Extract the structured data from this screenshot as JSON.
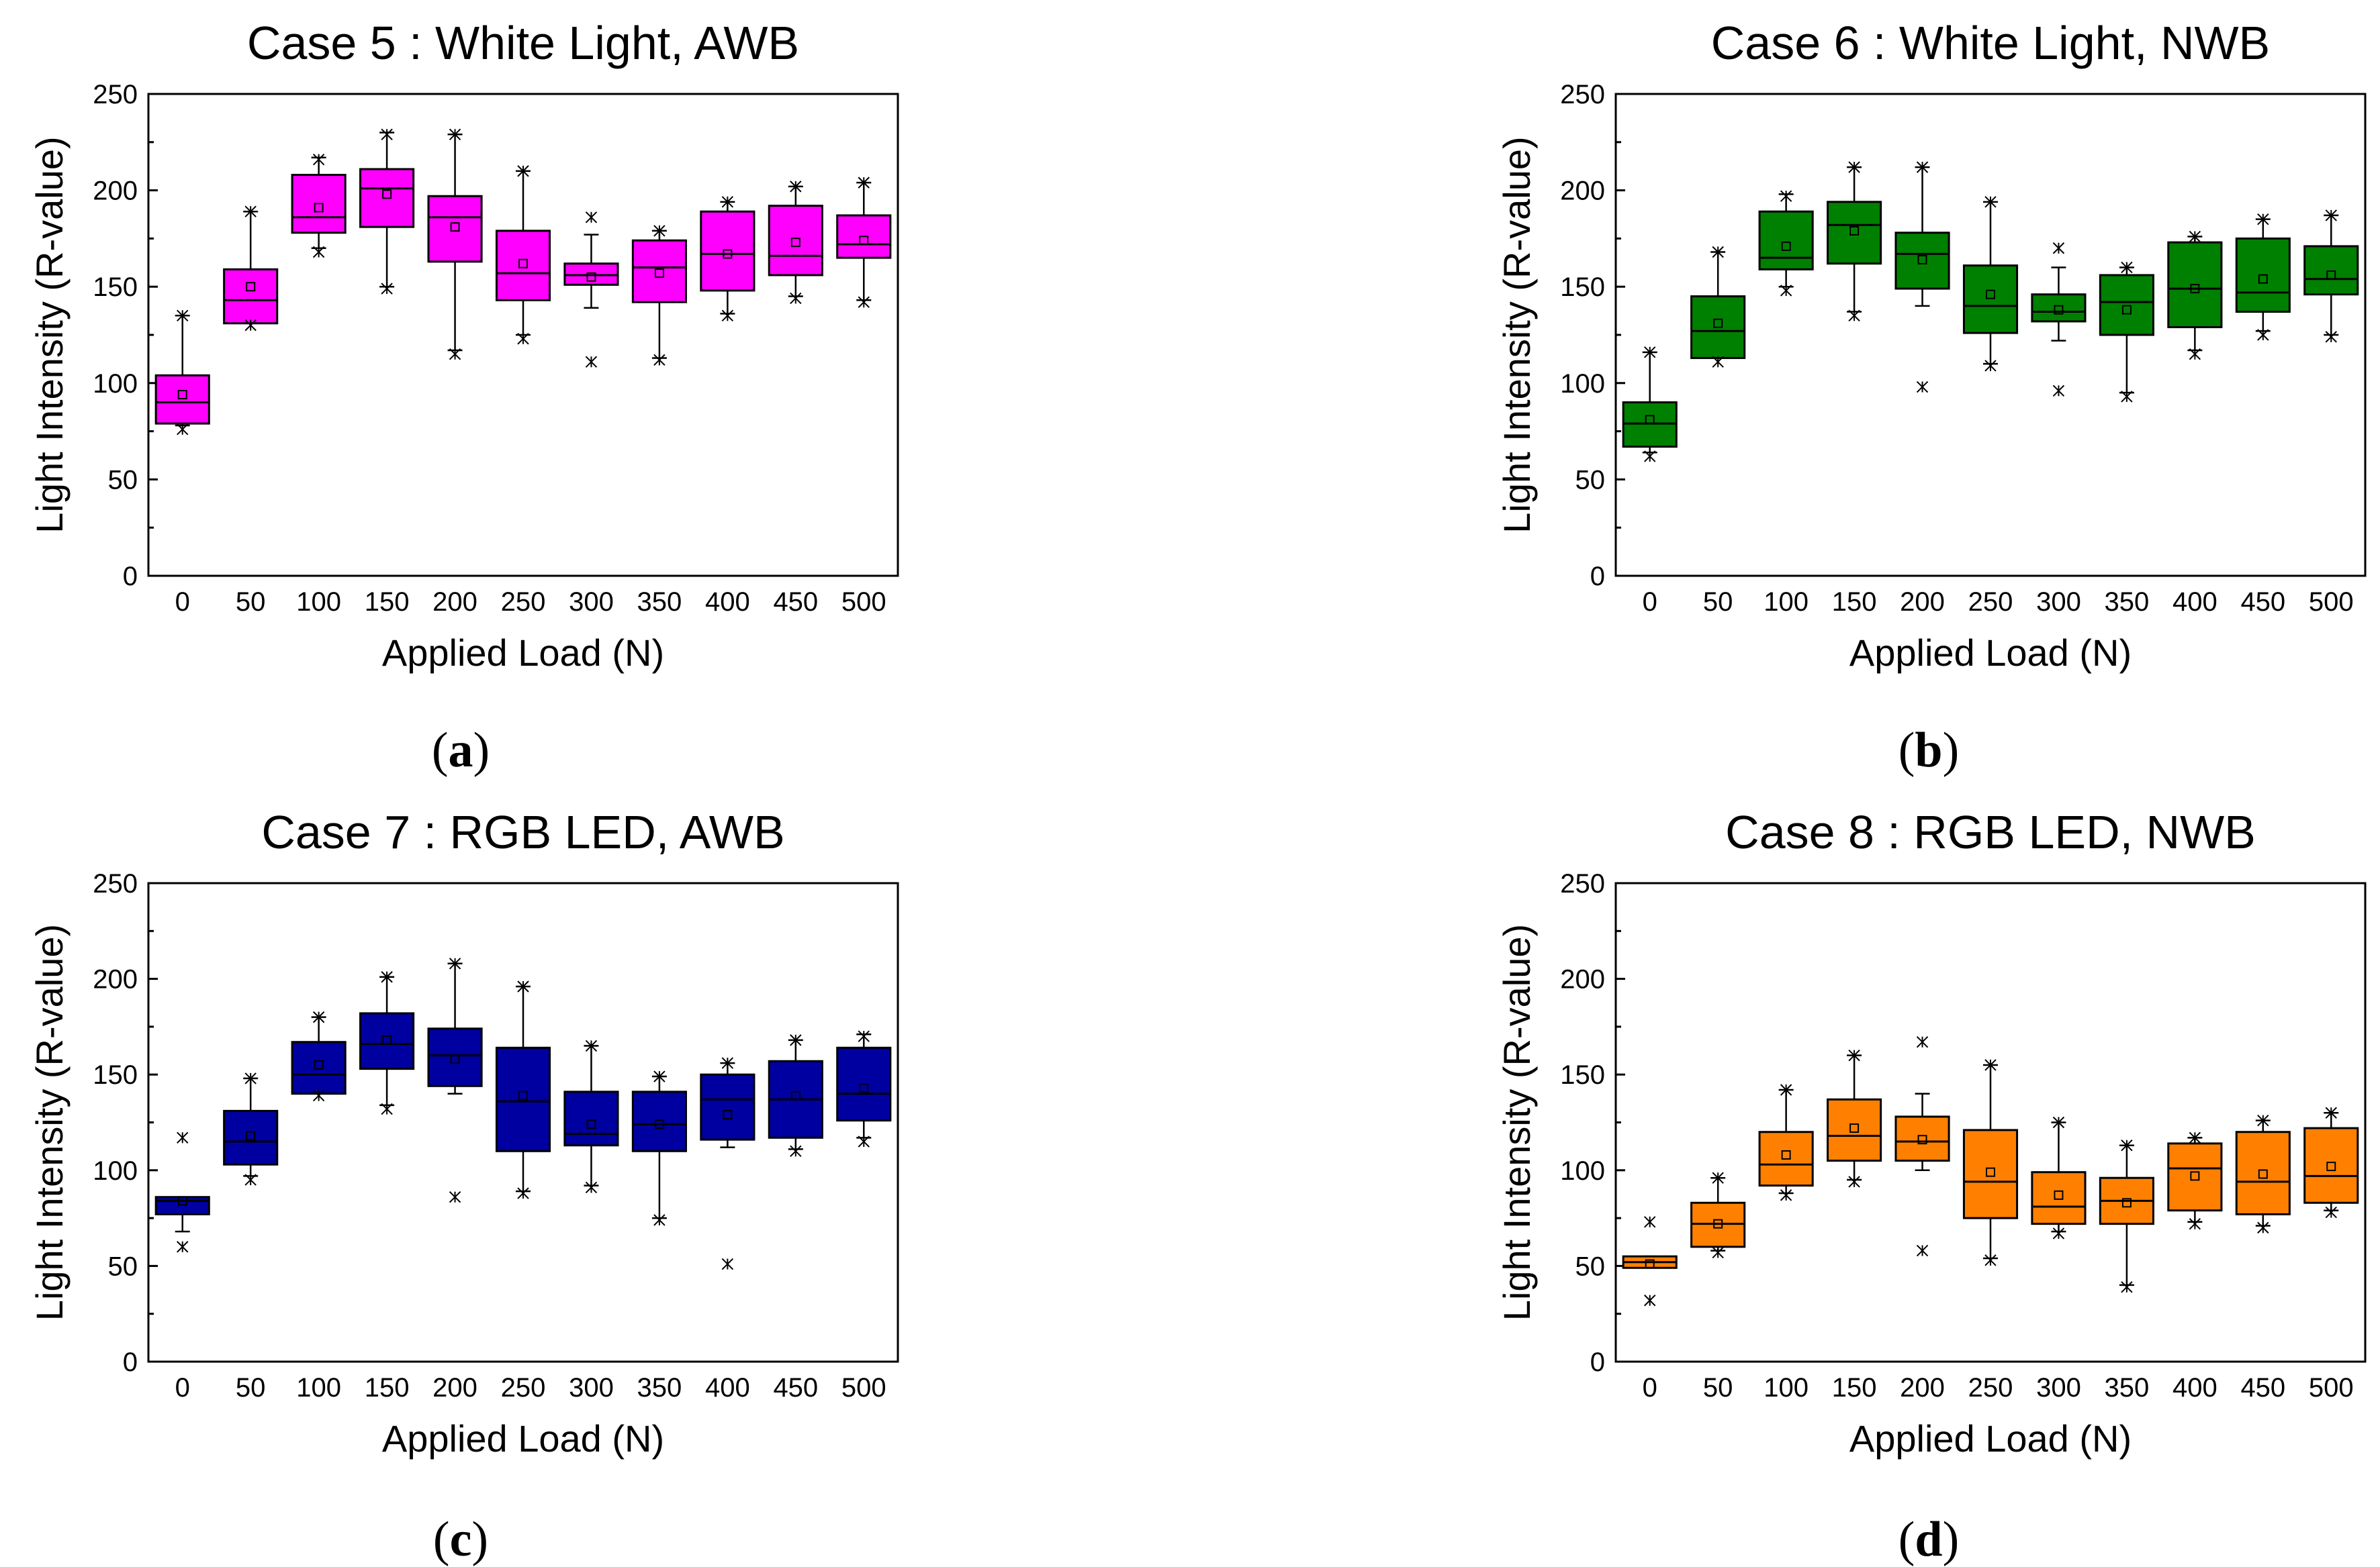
{
  "chart_data": [
    {
      "type": "box",
      "panel": "a",
      "title": "Case 5 : White Light, AWB",
      "xlabel": "Applied Load (N)",
      "ylabel": "Light Intensity (R-value)",
      "ylim": [
        0,
        250
      ],
      "yticks": [
        0,
        50,
        100,
        150,
        200,
        250
      ],
      "categories": [
        "0",
        "50",
        "100",
        "150",
        "200",
        "250",
        "300",
        "350",
        "400",
        "450",
        "500"
      ],
      "color": "#ff00ff",
      "boxes": [
        {
          "q1": 79,
          "median": 90,
          "q3": 104,
          "wlo": 78,
          "whi": 135,
          "mean": 94,
          "outliers": [
            76,
            135
          ]
        },
        {
          "q1": 131,
          "median": 143,
          "q3": 159,
          "wlo": 131,
          "whi": 189,
          "mean": 150,
          "outliers": [
            130,
            189
          ]
        },
        {
          "q1": 178,
          "median": 186,
          "q3": 208,
          "wlo": 170,
          "whi": 217,
          "mean": 191,
          "outliers": [
            168,
            216
          ]
        },
        {
          "q1": 181,
          "median": 201,
          "q3": 211,
          "wlo": 150,
          "whi": 230,
          "mean": 198,
          "outliers": [
            149,
            229
          ]
        },
        {
          "q1": 163,
          "median": 186,
          "q3": 197,
          "wlo": 117,
          "whi": 229,
          "mean": 181,
          "outliers": [
            115,
            229
          ]
        },
        {
          "q1": 143,
          "median": 157,
          "q3": 179,
          "wlo": 125,
          "whi": 210,
          "mean": 162,
          "outliers": [
            123,
            210
          ]
        },
        {
          "q1": 151,
          "median": 156,
          "q3": 162,
          "wlo": 139,
          "whi": 177,
          "mean": 155,
          "outliers": [
            111,
            186
          ]
        },
        {
          "q1": 142,
          "median": 160,
          "q3": 174,
          "wlo": 113,
          "whi": 179,
          "mean": 157,
          "outliers": [
            112,
            179
          ]
        },
        {
          "q1": 148,
          "median": 167,
          "q3": 189,
          "wlo": 136,
          "whi": 194,
          "mean": 167,
          "outliers": [
            135,
            194
          ]
        },
        {
          "q1": 156,
          "median": 166,
          "q3": 192,
          "wlo": 145,
          "whi": 202,
          "mean": 173,
          "outliers": [
            144,
            202
          ]
        },
        {
          "q1": 165,
          "median": 172,
          "q3": 187,
          "wlo": 143,
          "whi": 204,
          "mean": 174,
          "outliers": [
            142,
            204
          ]
        }
      ]
    },
    {
      "type": "box",
      "panel": "b",
      "title": "Case 6 : White Light, NWB",
      "xlabel": "Applied Load (N)",
      "ylabel": "Light Intensity (R-value)",
      "ylim": [
        0,
        250
      ],
      "yticks": [
        0,
        50,
        100,
        150,
        200,
        250
      ],
      "categories": [
        "0",
        "50",
        "100",
        "150",
        "200",
        "250",
        "300",
        "350",
        "400",
        "450",
        "500"
      ],
      "color": "#008000",
      "boxes": [
        {
          "q1": 67,
          "median": 79,
          "q3": 90,
          "wlo": 64,
          "whi": 116,
          "mean": 81,
          "outliers": [
            62,
            116
          ]
        },
        {
          "q1": 113,
          "median": 127,
          "q3": 145,
          "wlo": 113,
          "whi": 168,
          "mean": 131,
          "outliers": [
            111,
            168
          ]
        },
        {
          "q1": 159,
          "median": 165,
          "q3": 189,
          "wlo": 150,
          "whi": 198,
          "mean": 171,
          "outliers": [
            148,
            197
          ]
        },
        {
          "q1": 162,
          "median": 182,
          "q3": 194,
          "wlo": 137,
          "whi": 212,
          "mean": 179,
          "outliers": [
            135,
            212
          ]
        },
        {
          "q1": 149,
          "median": 167,
          "q3": 178,
          "wlo": 140,
          "whi": 212,
          "mean": 164,
          "outliers": [
            98,
            212
          ]
        },
        {
          "q1": 126,
          "median": 140,
          "q3": 161,
          "wlo": 110,
          "whi": 194,
          "mean": 146,
          "outliers": [
            109,
            194
          ]
        },
        {
          "q1": 132,
          "median": 137,
          "q3": 146,
          "wlo": 122,
          "whi": 160,
          "mean": 138,
          "outliers": [
            96,
            170
          ]
        },
        {
          "q1": 125,
          "median": 142,
          "q3": 156,
          "wlo": 95,
          "whi": 160,
          "mean": 138,
          "outliers": [
            93,
            160
          ]
        },
        {
          "q1": 129,
          "median": 149,
          "q3": 173,
          "wlo": 117,
          "whi": 176,
          "mean": 149,
          "outliers": [
            115,
            176
          ]
        },
        {
          "q1": 137,
          "median": 147,
          "q3": 175,
          "wlo": 127,
          "whi": 185,
          "mean": 154,
          "outliers": [
            125,
            185
          ]
        },
        {
          "q1": 146,
          "median": 154,
          "q3": 171,
          "wlo": 125,
          "whi": 187,
          "mean": 156,
          "outliers": [
            124,
            187
          ]
        }
      ]
    },
    {
      "type": "box",
      "panel": "c",
      "title": "Case 7 : RGB LED, AWB",
      "xlabel": "Applied Load (N)",
      "ylabel": "Light Intensity (R-value)",
      "ylim": [
        0,
        250
      ],
      "yticks": [
        0,
        50,
        100,
        150,
        200,
        250
      ],
      "categories": [
        "0",
        "50",
        "100",
        "150",
        "200",
        "250",
        "300",
        "350",
        "400",
        "450",
        "500"
      ],
      "color": "#0000a0",
      "boxes": [
        {
          "q1": 77,
          "median": 84,
          "q3": 86,
          "wlo": 68,
          "whi": 86,
          "mean": 84,
          "outliers": [
            60,
            117
          ]
        },
        {
          "q1": 103,
          "median": 115,
          "q3": 131,
          "wlo": 97,
          "whi": 148,
          "mean": 118,
          "outliers": [
            95,
            148
          ]
        },
        {
          "q1": 140,
          "median": 150,
          "q3": 167,
          "wlo": 140,
          "whi": 180,
          "mean": 155,
          "outliers": [
            139,
            180
          ]
        },
        {
          "q1": 153,
          "median": 166,
          "q3": 182,
          "wlo": 134,
          "whi": 201,
          "mean": 168,
          "outliers": [
            132,
            201
          ]
        },
        {
          "q1": 144,
          "median": 160,
          "q3": 174,
          "wlo": 140,
          "whi": 208,
          "mean": 158,
          "outliers": [
            86,
            208
          ]
        },
        {
          "q1": 110,
          "median": 136,
          "q3": 164,
          "wlo": 89,
          "whi": 196,
          "mean": 139,
          "outliers": [
            88,
            196
          ]
        },
        {
          "q1": 113,
          "median": 119,
          "q3": 141,
          "wlo": 92,
          "whi": 165,
          "mean": 124,
          "outliers": [
            91,
            165
          ]
        },
        {
          "q1": 110,
          "median": 124,
          "q3": 141,
          "wlo": 75,
          "whi": 149,
          "mean": 124,
          "outliers": [
            74,
            149
          ]
        },
        {
          "q1": 116,
          "median": 137,
          "q3": 150,
          "wlo": 112,
          "whi": 156,
          "mean": 129,
          "outliers": [
            51,
            156
          ]
        },
        {
          "q1": 117,
          "median": 137,
          "q3": 157,
          "wlo": 111,
          "whi": 168,
          "mean": 139,
          "outliers": [
            110,
            168
          ]
        },
        {
          "q1": 126,
          "median": 140,
          "q3": 164,
          "wlo": 117,
          "whi": 171,
          "mean": 143,
          "outliers": [
            115,
            170
          ]
        }
      ]
    },
    {
      "type": "box",
      "panel": "d",
      "title": "Case 8 : RGB LED, NWB",
      "xlabel": "Applied Load (N)",
      "ylabel": "Light Intensity (R-value)",
      "ylim": [
        0,
        250
      ],
      "yticks": [
        0,
        50,
        100,
        150,
        200,
        250
      ],
      "categories": [
        "0",
        "50",
        "100",
        "150",
        "200",
        "250",
        "300",
        "350",
        "400",
        "450",
        "500"
      ],
      "color": "#ff8000",
      "boxes": [
        {
          "q1": 49,
          "median": 52,
          "q3": 55,
          "wlo": 49,
          "whi": 55,
          "mean": 51,
          "outliers": [
            32,
            73
          ]
        },
        {
          "q1": 60,
          "median": 72,
          "q3": 83,
          "wlo": 58,
          "whi": 96,
          "mean": 72,
          "outliers": [
            57,
            96
          ]
        },
        {
          "q1": 92,
          "median": 103,
          "q3": 120,
          "wlo": 88,
          "whi": 142,
          "mean": 108,
          "outliers": [
            87,
            142
          ]
        },
        {
          "q1": 105,
          "median": 118,
          "q3": 137,
          "wlo": 95,
          "whi": 160,
          "mean": 122,
          "outliers": [
            94,
            160
          ]
        },
        {
          "q1": 105,
          "median": 115,
          "q3": 128,
          "wlo": 100,
          "whi": 140,
          "mean": 116,
          "outliers": [
            58,
            167
          ]
        },
        {
          "q1": 75,
          "median": 94,
          "q3": 121,
          "wlo": 54,
          "whi": 155,
          "mean": 99,
          "outliers": [
            53,
            155
          ]
        },
        {
          "q1": 72,
          "median": 81,
          "q3": 99,
          "wlo": 68,
          "whi": 125,
          "mean": 87,
          "outliers": [
            67,
            125
          ]
        },
        {
          "q1": 72,
          "median": 84,
          "q3": 96,
          "wlo": 40,
          "whi": 113,
          "mean": 83,
          "outliers": [
            39,
            113
          ]
        },
        {
          "q1": 79,
          "median": 101,
          "q3": 114,
          "wlo": 73,
          "whi": 117,
          "mean": 97,
          "outliers": [
            72,
            117
          ]
        },
        {
          "q1": 77,
          "median": 94,
          "q3": 120,
          "wlo": 71,
          "whi": 126,
          "mean": 98,
          "outliers": [
            70,
            126
          ]
        },
        {
          "q1": 83,
          "median": 97,
          "q3": 122,
          "wlo": 79,
          "whi": 130,
          "mean": 102,
          "outliers": [
            78,
            130
          ]
        }
      ]
    }
  ],
  "panel_labels": [
    {
      "open": "(",
      "letter": "a",
      "close": ")"
    },
    {
      "open": "(",
      "letter": "b",
      "close": ")"
    },
    {
      "open": "(",
      "letter": "c",
      "close": ")"
    },
    {
      "open": "(",
      "letter": "d",
      "close": ")"
    }
  ]
}
